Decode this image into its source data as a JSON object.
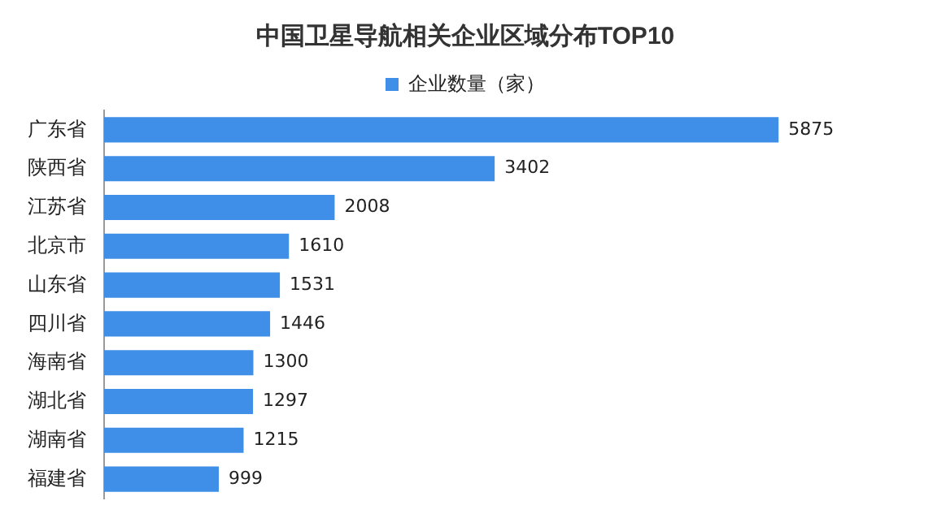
{
  "chart_data": {
    "type": "bar",
    "orientation": "horizontal",
    "title": "中国卫星导航相关企业区域分布TOP10",
    "categories": [
      "广东省",
      "陕西省",
      "江苏省",
      "北京市",
      "山东省",
      "四川省",
      "海南省",
      "湖北省",
      "湖南省",
      "福建省"
    ],
    "series": [
      {
        "name": "企业数量（家）",
        "color": "#3f8fe8",
        "values": [
          5875,
          3402,
          2008,
          1610,
          1531,
          1446,
          1300,
          1297,
          1215,
          999
        ]
      }
    ],
    "data_labels": true,
    "legend": "top"
  }
}
